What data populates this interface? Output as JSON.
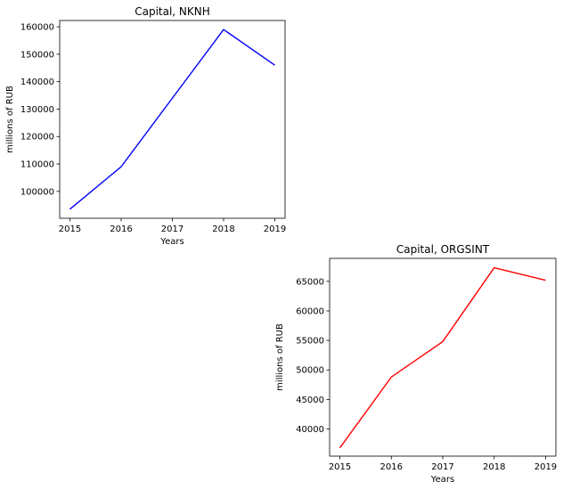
{
  "chart_data": [
    {
      "type": "line",
      "title": "Capital, NKNH",
      "xlabel": "Years",
      "ylabel": "millions of RUB",
      "x": [
        2015,
        2016,
        2017,
        2018,
        2019
      ],
      "series": [
        {
          "values": [
            93500,
            109000,
            134000,
            159000,
            146000
          ],
          "color": "#0000ff"
        }
      ],
      "xlim": [
        2014.8,
        2019.2
      ],
      "ylim": [
        90200,
        162300
      ],
      "xticks": [
        "2015",
        "2016",
        "2017",
        "2018",
        "2019"
      ],
      "yticks": [
        100000,
        110000,
        120000,
        130000,
        140000,
        150000,
        160000
      ],
      "ytick_labels": [
        "100000",
        "110000",
        "120000",
        "130000",
        "140000",
        "150000",
        "160000"
      ],
      "grid": false
    },
    {
      "type": "line",
      "title": "Capital, ORGSINT",
      "xlabel": "Years",
      "ylabel": "millions of RUB",
      "x": [
        2015,
        2016,
        2017,
        2018,
        2019
      ],
      "series": [
        {
          "values": [
            36800,
            48800,
            54800,
            67300,
            65200
          ],
          "color": "#ff0000"
        }
      ],
      "xlim": [
        2014.8,
        2019.2
      ],
      "ylim": [
        35400,
        68900
      ],
      "xticks": [
        "2015",
        "2016",
        "2017",
        "2018",
        "2019"
      ],
      "yticks": [
        40000,
        45000,
        50000,
        55000,
        60000,
        65000
      ],
      "ytick_labels": [
        "40000",
        "45000",
        "50000",
        "55000",
        "60000",
        "65000"
      ],
      "grid": false
    }
  ]
}
